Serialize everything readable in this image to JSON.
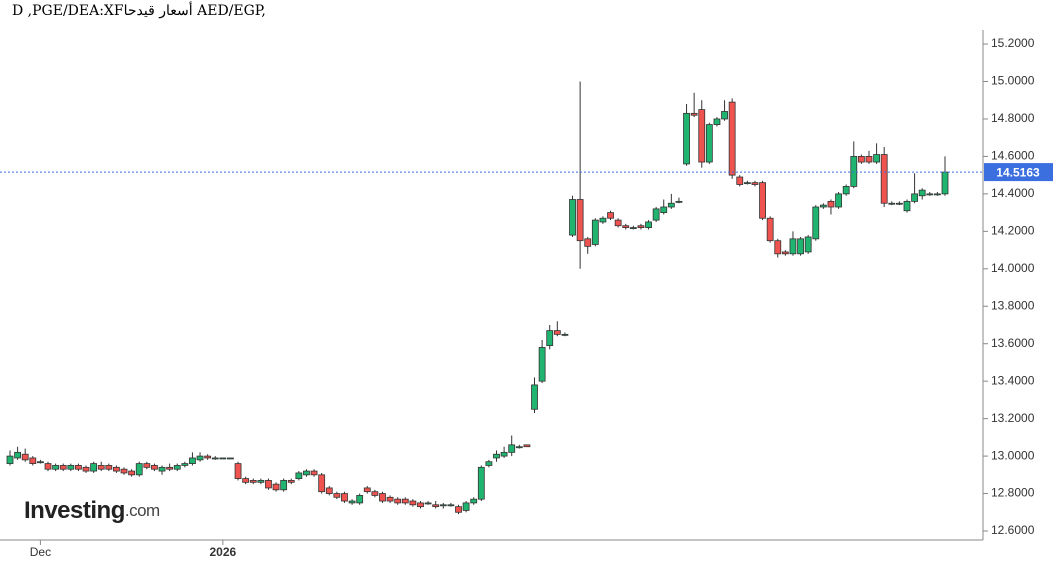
{
  "chart_data": {
    "type": "candlestick",
    "title": "D ,PGE/DEA:XFأسعار قيدحا AED/EGP,",
    "logo": "Investing",
    "logo_suffix": ".com",
    "up_color": "#1fb571",
    "down_color": "#ef5350",
    "price_line_color": "#3b6fe0",
    "last_price": 14.5163,
    "ylim": [
      12.552,
      15.275
    ],
    "yticks": [
      {
        "value": 12.6,
        "label": "12.6000"
      },
      {
        "value": 12.8,
        "label": "12.8000"
      },
      {
        "value": 13.0,
        "label": "13.0000"
      },
      {
        "value": 13.2,
        "label": "13.2000"
      },
      {
        "value": 13.4,
        "label": "13.4000"
      },
      {
        "value": 13.6,
        "label": "13.6000"
      },
      {
        "value": 13.8,
        "label": "13.8000"
      },
      {
        "value": 14.0,
        "label": "14.0000"
      },
      {
        "value": 14.2,
        "label": "14.2000"
      },
      {
        "value": 14.4,
        "label": "14.4000"
      },
      {
        "value": 14.6,
        "label": "14.6000"
      },
      {
        "value": 14.8,
        "label": "14.8000"
      },
      {
        "value": 15.0,
        "label": "15.0000"
      },
      {
        "value": 15.2,
        "label": "15.2000"
      }
    ],
    "categories": [
      null,
      null,
      null,
      null,
      "Dec",
      null,
      null,
      null,
      null,
      null,
      null,
      null,
      null,
      null,
      null,
      null,
      null,
      null,
      null,
      null,
      null,
      null,
      null,
      null,
      null,
      null,
      null,
      null,
      "2026",
      null,
      null,
      null,
      null,
      null,
      null,
      null,
      null,
      null,
      null,
      null,
      null,
      null,
      null,
      null,
      null,
      null,
      null,
      null,
      null,
      null,
      null,
      null,
      null,
      null,
      null,
      null,
      null,
      null,
      null,
      null,
      null,
      null,
      null,
      null,
      null,
      null,
      null,
      null,
      null,
      null,
      null,
      null,
      null,
      null,
      null,
      null,
      null,
      null,
      null,
      null,
      null,
      null,
      null,
      null,
      null,
      null,
      null,
      null,
      null,
      null,
      null,
      null,
      null,
      null,
      null,
      null,
      null,
      null,
      null,
      null,
      null,
      null,
      null,
      null,
      null,
      null,
      null,
      null,
      null,
      null,
      null,
      null,
      null,
      null,
      null,
      null,
      null,
      null,
      null,
      null,
      null,
      null,
      null,
      null
    ],
    "ohlc": [
      [
        12.96,
        13.03,
        12.95,
        13.0
      ],
      [
        12.99,
        13.05,
        12.98,
        13.02
      ],
      [
        13.01,
        13.04,
        12.97,
        12.98
      ],
      [
        12.99,
        13.0,
        12.95,
        12.96
      ],
      [
        12.97,
        12.98,
        12.96,
        12.97
      ],
      [
        12.96,
        12.97,
        12.92,
        12.93
      ],
      [
        12.93,
        12.96,
        12.92,
        12.95
      ],
      [
        12.95,
        12.96,
        12.92,
        12.93
      ],
      [
        12.93,
        12.96,
        12.92,
        12.95
      ],
      [
        12.95,
        12.96,
        12.92,
        12.93
      ],
      [
        12.94,
        12.95,
        12.91,
        12.92
      ],
      [
        12.92,
        12.97,
        12.91,
        12.96
      ],
      [
        12.95,
        12.97,
        12.92,
        12.93
      ],
      [
        12.95,
        12.96,
        12.92,
        12.93
      ],
      [
        12.94,
        12.95,
        12.91,
        12.92
      ],
      [
        12.93,
        12.94,
        12.9,
        12.91
      ],
      [
        12.92,
        12.93,
        12.89,
        12.9
      ],
      [
        12.9,
        12.97,
        12.89,
        12.96
      ],
      [
        12.96,
        12.97,
        12.93,
        12.94
      ],
      [
        12.95,
        12.96,
        12.92,
        12.93
      ],
      [
        12.92,
        12.95,
        12.9,
        12.94
      ],
      [
        12.94,
        12.96,
        12.92,
        12.93
      ],
      [
        12.93,
        12.96,
        12.92,
        12.95
      ],
      [
        12.95,
        12.97,
        12.94,
        12.96
      ],
      [
        12.96,
        13.02,
        12.95,
        12.99
      ],
      [
        12.98,
        13.02,
        12.97,
        13.0
      ],
      [
        13.0,
        13.01,
        12.98,
        12.99
      ],
      [
        12.99,
        13.0,
        12.98,
        12.99
      ],
      [
        12.99,
        12.99,
        12.99,
        12.99
      ],
      [
        12.99,
        12.99,
        12.99,
        12.99
      ],
      [
        12.96,
        12.97,
        12.87,
        12.88
      ],
      [
        12.88,
        12.89,
        12.85,
        12.86
      ],
      [
        12.87,
        12.88,
        12.85,
        12.86
      ],
      [
        12.86,
        12.88,
        12.85,
        12.87
      ],
      [
        12.87,
        12.88,
        12.82,
        12.83
      ],
      [
        12.85,
        12.86,
        12.81,
        12.82
      ],
      [
        12.82,
        12.88,
        12.81,
        12.87
      ],
      [
        12.87,
        12.88,
        12.85,
        12.86
      ],
      [
        12.88,
        12.92,
        12.87,
        12.91
      ],
      [
        12.9,
        12.93,
        12.89,
        12.92
      ],
      [
        12.92,
        12.93,
        12.89,
        12.9
      ],
      [
        12.9,
        12.91,
        12.8,
        12.81
      ],
      [
        12.83,
        12.84,
        12.79,
        12.8
      ],
      [
        12.8,
        12.81,
        12.77,
        12.78
      ],
      [
        12.8,
        12.81,
        12.75,
        12.76
      ],
      [
        12.75,
        12.77,
        12.74,
        12.76
      ],
      [
        12.75,
        12.8,
        12.74,
        12.79
      ],
      [
        12.83,
        12.84,
        12.8,
        12.81
      ],
      [
        12.81,
        12.82,
        12.78,
        12.79
      ],
      [
        12.8,
        12.81,
        12.75,
        12.76
      ],
      [
        12.78,
        12.79,
        12.75,
        12.76
      ],
      [
        12.77,
        12.78,
        12.74,
        12.75
      ],
      [
        12.77,
        12.78,
        12.74,
        12.75
      ],
      [
        12.76,
        12.77,
        12.73,
        12.74
      ],
      [
        12.75,
        12.76,
        12.72,
        12.73
      ],
      [
        12.75,
        12.76,
        12.74,
        12.75
      ],
      [
        12.74,
        12.76,
        12.72,
        12.73
      ],
      [
        12.74,
        12.75,
        12.72,
        12.74
      ],
      [
        12.74,
        12.75,
        12.73,
        12.74
      ],
      [
        12.73,
        12.74,
        12.69,
        12.7
      ],
      [
        12.71,
        12.76,
        12.7,
        12.75
      ],
      [
        12.75,
        12.78,
        12.74,
        12.77
      ],
      [
        12.77,
        12.95,
        12.76,
        12.94
      ],
      [
        12.95,
        12.98,
        12.94,
        12.97
      ],
      [
        12.99,
        13.03,
        12.97,
        13.01
      ],
      [
        13.0,
        13.05,
        12.99,
        13.02
      ],
      [
        13.02,
        13.11,
        13.0,
        13.06
      ],
      [
        13.05,
        13.06,
        13.04,
        13.05
      ],
      [
        13.06,
        13.06,
        13.05,
        13.05
      ],
      [
        13.25,
        13.42,
        13.23,
        13.38
      ],
      [
        13.4,
        13.62,
        13.39,
        13.58
      ],
      [
        13.59,
        13.7,
        13.57,
        13.67
      ],
      [
        13.67,
        13.72,
        13.64,
        13.65
      ],
      [
        13.65,
        13.66,
        13.64,
        13.65
      ],
      [
        14.18,
        14.39,
        14.17,
        14.37
      ],
      [
        14.37,
        15.0,
        14.0,
        14.15
      ],
      [
        14.16,
        14.17,
        14.08,
        14.12
      ],
      [
        14.13,
        14.27,
        14.12,
        14.26
      ],
      [
        14.25,
        14.28,
        14.24,
        14.27
      ],
      [
        14.3,
        14.31,
        14.26,
        14.27
      ],
      [
        14.26,
        14.27,
        14.22,
        14.23
      ],
      [
        14.23,
        14.24,
        14.21,
        14.22
      ],
      [
        14.22,
        14.23,
        14.21,
        14.22
      ],
      [
        14.23,
        14.24,
        14.21,
        14.22
      ],
      [
        14.22,
        14.26,
        14.21,
        14.25
      ],
      [
        14.26,
        14.33,
        14.25,
        14.32
      ],
      [
        14.3,
        14.37,
        14.29,
        14.33
      ],
      [
        14.33,
        14.4,
        14.32,
        14.35
      ],
      [
        14.36,
        14.38,
        14.35,
        14.36
      ],
      [
        14.56,
        14.88,
        14.55,
        14.83
      ],
      [
        14.83,
        14.94,
        14.81,
        14.82
      ],
      [
        14.85,
        14.9,
        14.54,
        14.57
      ],
      [
        14.57,
        14.78,
        14.56,
        14.77
      ],
      [
        14.77,
        14.81,
        14.76,
        14.8
      ],
      [
        14.8,
        14.9,
        14.79,
        14.84
      ],
      [
        14.89,
        14.91,
        14.48,
        14.5
      ],
      [
        14.49,
        14.5,
        14.44,
        14.45
      ],
      [
        14.46,
        14.47,
        14.45,
        14.46
      ],
      [
        14.46,
        14.47,
        14.44,
        14.45
      ],
      [
        14.46,
        14.47,
        14.26,
        14.27
      ],
      [
        14.27,
        14.28,
        14.14,
        14.15
      ],
      [
        14.15,
        14.16,
        14.06,
        14.08
      ],
      [
        14.09,
        14.1,
        14.07,
        14.08
      ],
      [
        14.08,
        14.2,
        14.07,
        14.16
      ],
      [
        14.08,
        14.17,
        14.07,
        14.16
      ],
      [
        14.09,
        14.18,
        14.08,
        14.17
      ],
      [
        14.16,
        14.34,
        14.15,
        14.33
      ],
      [
        14.33,
        14.35,
        14.32,
        14.34
      ],
      [
        14.36,
        14.37,
        14.29,
        14.33
      ],
      [
        14.33,
        14.41,
        14.32,
        14.4
      ],
      [
        14.4,
        14.45,
        14.39,
        14.44
      ],
      [
        14.44,
        14.68,
        14.43,
        14.6
      ],
      [
        14.6,
        14.61,
        14.56,
        14.57
      ],
      [
        14.6,
        14.63,
        14.56,
        14.57
      ],
      [
        14.57,
        14.67,
        14.56,
        14.61
      ],
      [
        14.61,
        14.65,
        14.33,
        14.35
      ],
      [
        14.35,
        14.36,
        14.34,
        14.35
      ],
      [
        14.35,
        14.36,
        14.34,
        14.35
      ],
      [
        14.31,
        14.37,
        14.3,
        14.36
      ],
      [
        14.36,
        14.51,
        14.35,
        14.4
      ],
      [
        14.39,
        14.43,
        14.37,
        14.42
      ],
      [
        14.4,
        14.41,
        14.39,
        14.4
      ],
      [
        14.4,
        14.41,
        14.39,
        14.4
      ],
      [
        14.4,
        14.6,
        14.39,
        14.5163
      ]
    ]
  }
}
